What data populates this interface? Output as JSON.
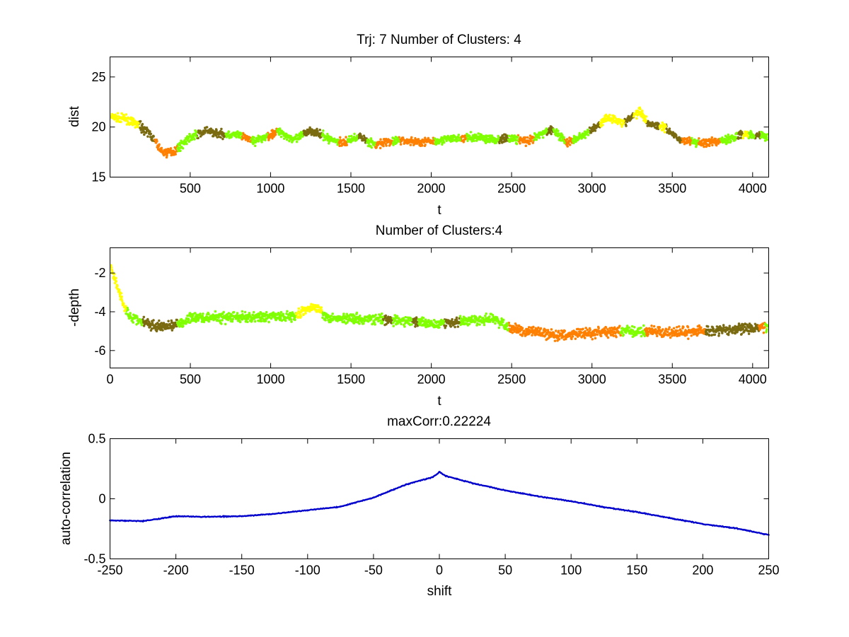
{
  "chart_data": [
    {
      "id": "dist",
      "type": "scatter",
      "title": "Trj: 7 Number of Clusters: 4",
      "xlabel": "t",
      "ylabel": "dist",
      "xlim": [
        1,
        4100
      ],
      "ylim": [
        15,
        27
      ],
      "xticks": [
        500,
        1000,
        1500,
        2000,
        2500,
        3000,
        3500,
        4000
      ],
      "xtick_labels": [
        "500",
        "1000",
        "1500",
        "2000",
        "2500",
        "3000",
        "3500",
        "4000"
      ],
      "yticks": [
        15,
        20,
        25
      ],
      "ytick_labels": [
        "15",
        "20",
        "25"
      ],
      "cluster_colors": [
        "#ffff00",
        "#7fff00",
        "#7a6a10",
        "#ff8000"
      ],
      "anchors_x": [
        0,
        100,
        180,
        250,
        330,
        400,
        500,
        600,
        700,
        800,
        900,
        1000,
        1050,
        1150,
        1250,
        1350,
        1450,
        1550,
        1650,
        1700,
        1800,
        1900,
        2000,
        2100,
        2200,
        2300,
        2400,
        2500,
        2600,
        2700,
        2750,
        2850,
        2950,
        3050,
        3100,
        3200,
        3300,
        3350,
        3450,
        3550,
        3650,
        3750,
        3850,
        3950,
        4050,
        4100
      ],
      "anchors_y": [
        21,
        20.8,
        20.2,
        19.3,
        17.4,
        17.6,
        19,
        19.6,
        19.3,
        19.2,
        18.6,
        19.2,
        19.6,
        18.7,
        19.7,
        18.9,
        18.4,
        19.1,
        18.2,
        18.4,
        18.7,
        18.5,
        18.6,
        18.8,
        18.9,
        19,
        18.7,
        18.9,
        18.5,
        19.4,
        19.8,
        18.4,
        19.2,
        20.3,
        21,
        20.4,
        21.6,
        20.4,
        20,
        18.7,
        18.5,
        18.4,
        18.8,
        19.3,
        19.2,
        19
      ],
      "segments": [
        [
          0,
          0
        ],
        [
          180,
          2
        ],
        [
          280,
          3
        ],
        [
          420,
          1
        ],
        [
          540,
          2
        ],
        [
          720,
          1
        ],
        [
          820,
          3
        ],
        [
          880,
          1
        ],
        [
          980,
          3
        ],
        [
          1040,
          1
        ],
        [
          1200,
          2
        ],
        [
          1320,
          1
        ],
        [
          1420,
          3
        ],
        [
          1480,
          1
        ],
        [
          1540,
          2
        ],
        [
          1600,
          1
        ],
        [
          1650,
          3
        ],
        [
          1760,
          1
        ],
        [
          1800,
          3
        ],
        [
          2020,
          1
        ],
        [
          2180,
          3
        ],
        [
          2220,
          1
        ],
        [
          2420,
          2
        ],
        [
          2480,
          1
        ],
        [
          2540,
          3
        ],
        [
          2640,
          1
        ],
        [
          2720,
          2
        ],
        [
          2760,
          1
        ],
        [
          2830,
          3
        ],
        [
          2880,
          1
        ],
        [
          2980,
          2
        ],
        [
          3050,
          0
        ],
        [
          3200,
          2
        ],
        [
          3260,
          0
        ],
        [
          3340,
          2
        ],
        [
          3420,
          0
        ],
        [
          3460,
          2
        ],
        [
          3560,
          3
        ],
        [
          3620,
          1
        ],
        [
          3660,
          3
        ],
        [
          3800,
          1
        ],
        [
          3900,
          2
        ],
        [
          3940,
          0
        ],
        [
          3970,
          1
        ],
        [
          4010,
          2
        ],
        [
          4050,
          1
        ]
      ],
      "noise": 0.35
    },
    {
      "id": "depth",
      "type": "scatter",
      "title": "Number of Clusters:4",
      "xlabel": "t",
      "ylabel": "-depth",
      "xlim": [
        0,
        4100
      ],
      "ylim": [
        -6.9,
        -0.7
      ],
      "xticks": [
        0,
        500,
        1000,
        1500,
        2000,
        2500,
        3000,
        3500,
        4000
      ],
      "xtick_labels": [
        "0",
        "500",
        "1000",
        "1500",
        "2000",
        "2500",
        "3000",
        "3500",
        "4000"
      ],
      "yticks": [
        -6,
        -4,
        -2
      ],
      "ytick_labels": [
        "-6",
        "-4",
        "-2"
      ],
      "cluster_colors": [
        "#ffff00",
        "#7fff00",
        "#7a6a10",
        "#ff8000"
      ],
      "anchors_x": [
        0,
        40,
        90,
        130,
        200,
        300,
        450,
        500,
        800,
        1150,
        1250,
        1300,
        1350,
        1700,
        2000,
        2400,
        2500,
        2600,
        2800,
        3000,
        3200,
        3300,
        3500,
        3700,
        3900,
        4100
      ],
      "anchors_y": [
        -1.6,
        -2.5,
        -3.8,
        -4.3,
        -4.5,
        -4.8,
        -4.6,
        -4.3,
        -4.3,
        -4.2,
        -3.8,
        -3.8,
        -4.3,
        -4.4,
        -4.6,
        -4.4,
        -4.9,
        -5,
        -5.2,
        -5.1,
        -5,
        -5,
        -5.1,
        -5,
        -4.9,
        -4.8
      ],
      "segments": [
        [
          0,
          0
        ],
        [
          100,
          1
        ],
        [
          200,
          2
        ],
        [
          420,
          1
        ],
        [
          1160,
          0
        ],
        [
          1320,
          1
        ],
        [
          1700,
          2
        ],
        [
          1760,
          1
        ],
        [
          1880,
          2
        ],
        [
          1920,
          1
        ],
        [
          2080,
          2
        ],
        [
          2180,
          1
        ],
        [
          2480,
          3
        ],
        [
          3180,
          1
        ],
        [
          3330,
          3
        ],
        [
          3700,
          2
        ],
        [
          4040,
          3
        ],
        [
          4080,
          1
        ]
      ],
      "noise": 0.22
    },
    {
      "id": "autocorr",
      "type": "line",
      "title": "maxCorr:0.22224",
      "xlabel": "shift",
      "ylabel": "auto-correlation",
      "xlim": [
        -250,
        250
      ],
      "ylim": [
        -0.5,
        0.5
      ],
      "xticks": [
        -250,
        -200,
        -150,
        -100,
        -50,
        0,
        50,
        100,
        150,
        200,
        250
      ],
      "xtick_labels": [
        "-250",
        "-200",
        "-150",
        "-100",
        "-50",
        "0",
        "50",
        "100",
        "150",
        "200",
        "250"
      ],
      "yticks": [
        -0.5,
        0,
        0.5
      ],
      "ytick_labels": [
        "-0.5",
        "0",
        "0.5"
      ],
      "line_color": "#0000cc",
      "x": [
        -250,
        -225,
        -200,
        -175,
        -150,
        -125,
        -100,
        -75,
        -50,
        -25,
        -5,
        0,
        5,
        25,
        50,
        75,
        100,
        125,
        150,
        175,
        200,
        225,
        250
      ],
      "y": [
        -0.18,
        -0.185,
        -0.145,
        -0.15,
        -0.145,
        -0.125,
        -0.095,
        -0.065,
        0.01,
        0.12,
        0.18,
        0.222,
        0.19,
        0.13,
        0.07,
        0.02,
        -0.02,
        -0.07,
        -0.11,
        -0.16,
        -0.21,
        -0.245,
        -0.3
      ]
    }
  ]
}
